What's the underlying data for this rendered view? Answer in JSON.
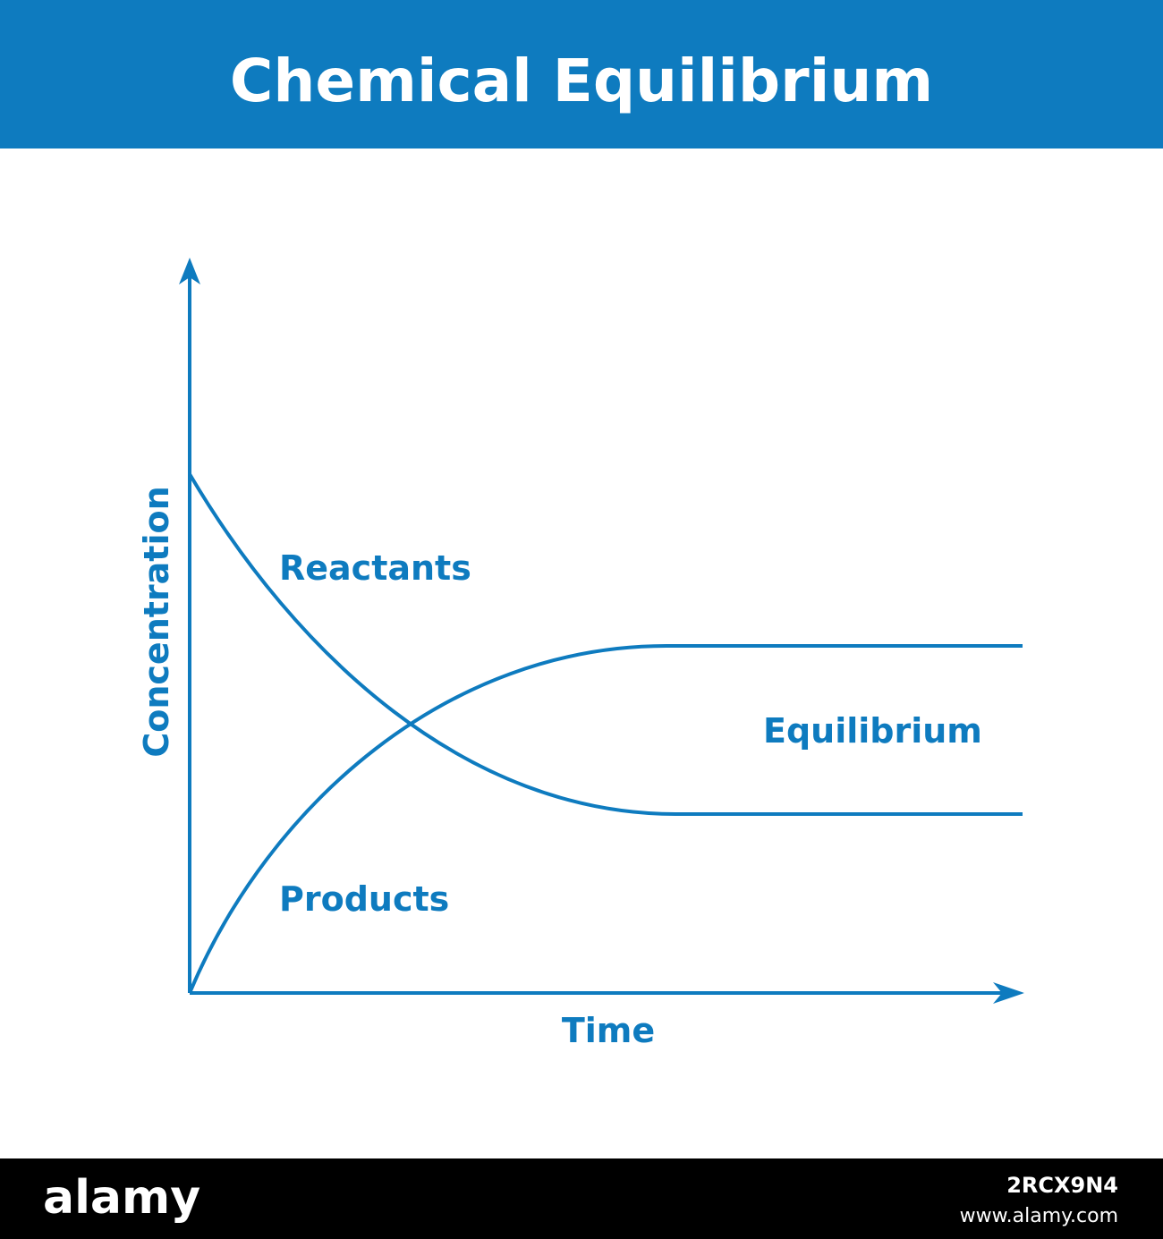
{
  "header": {
    "title": "Chemical Equilibrium"
  },
  "axes": {
    "y_label": "Concentration",
    "x_label": "Time"
  },
  "labels": {
    "reactants": "Reactants",
    "equilibrium": "Equilibrium",
    "products": "Products"
  },
  "footer": {
    "brand": "alamy",
    "image_id": "2RCX9N4",
    "url": "www.alamy.com"
  }
}
